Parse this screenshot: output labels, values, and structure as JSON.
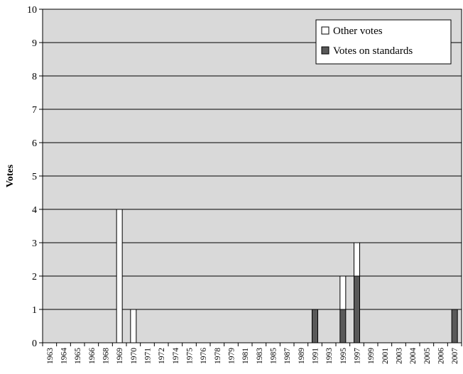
{
  "chart_data": {
    "type": "bar",
    "stacked": true,
    "ylabel": "Votes",
    "xlabel": "",
    "title": "",
    "ylim": [
      0,
      10
    ],
    "yticks": [
      0,
      1,
      2,
      3,
      4,
      5,
      6,
      7,
      8,
      9,
      10
    ],
    "grid": true,
    "legend_position": "top-right",
    "background_color": "#d9d9d9",
    "categories": [
      "1963",
      "1964",
      "1965",
      "1966",
      "1968",
      "1969",
      "1970",
      "1971",
      "1972",
      "1974",
      "1975",
      "1976",
      "1978",
      "1979",
      "1981",
      "1983",
      "1985",
      "1987",
      "1989",
      "1991",
      "1993",
      "1995",
      "1997",
      "1999",
      "2001",
      "2003",
      "2004",
      "2005",
      "2006",
      "2007"
    ],
    "series": [
      {
        "name": "Votes on standards",
        "color": "#595959",
        "values": [
          0,
          0,
          0,
          0,
          0,
          0,
          0,
          0,
          0,
          0,
          0,
          0,
          0,
          0,
          0,
          0,
          0,
          0,
          0,
          1,
          0,
          1,
          2,
          0,
          0,
          0,
          0,
          0,
          0,
          1
        ]
      },
      {
        "name": "Other votes",
        "color": "#ffffff",
        "values": [
          0,
          0,
          0,
          0,
          0,
          4,
          1,
          0,
          0,
          0,
          0,
          0,
          0,
          0,
          0,
          0,
          0,
          0,
          0,
          0,
          0,
          1,
          1,
          0,
          0,
          0,
          0,
          0,
          0,
          0
        ]
      }
    ],
    "legend": [
      "Other votes",
      "Votes on standards"
    ]
  }
}
